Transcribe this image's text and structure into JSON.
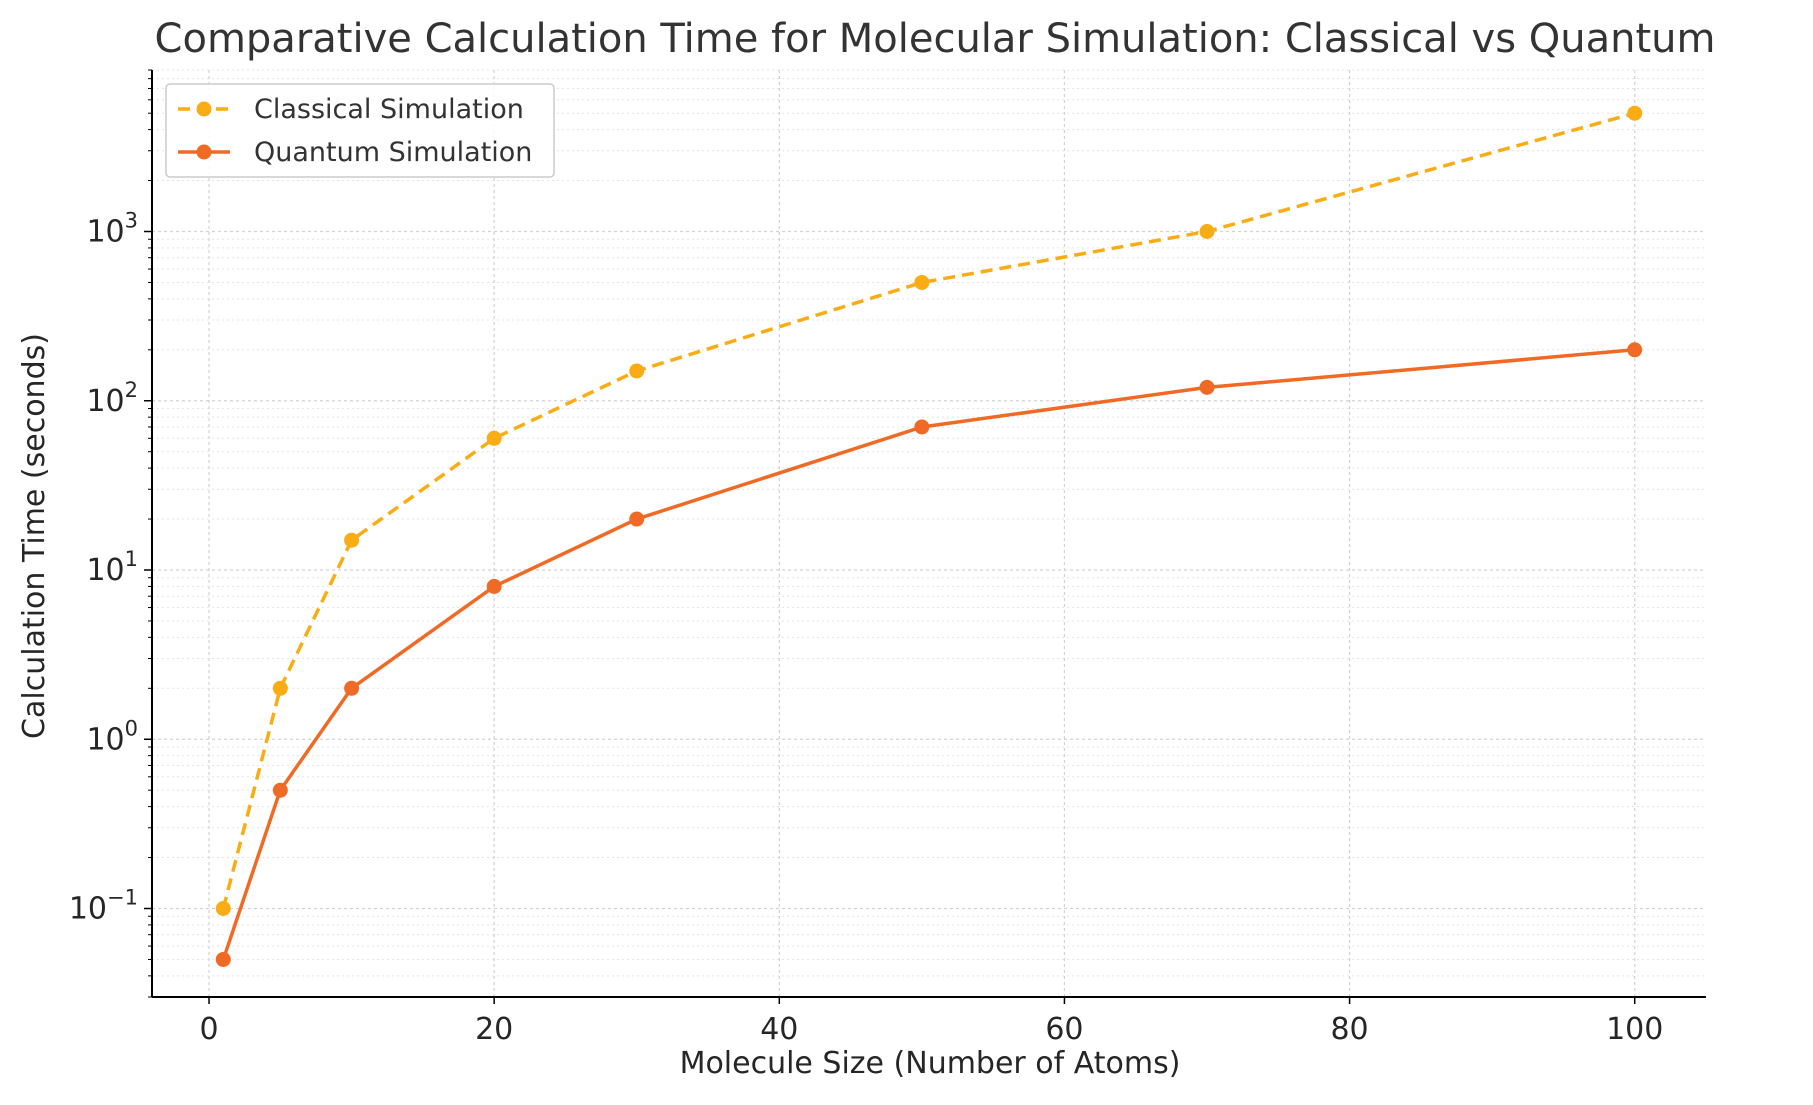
{
  "chart_data": {
    "type": "line",
    "title": "Comparative Calculation Time for Molecular Simulation: Classical vs Quantum",
    "xlabel": "Molecule Size (Number of Atoms)",
    "ylabel": "Calculation Time (seconds)",
    "xscale": "linear",
    "yscale": "log",
    "xlim": [
      -4,
      105
    ],
    "ylim": [
      0.03,
      9000
    ],
    "xticks": [
      0,
      20,
      40,
      60,
      80,
      100
    ],
    "yticks": [
      {
        "value": 0.1,
        "base": "10",
        "exp": "−1"
      },
      {
        "value": 1,
        "base": "10",
        "exp": "0"
      },
      {
        "value": 10,
        "base": "10",
        "exp": "1"
      },
      {
        "value": 100,
        "base": "10",
        "exp": "2"
      },
      {
        "value": 1000,
        "base": "10",
        "exp": "3"
      }
    ],
    "grid": true,
    "legend_position": "top-left",
    "x": [
      1,
      5,
      10,
      20,
      30,
      50,
      70,
      100
    ],
    "series": [
      {
        "name": "Classical Simulation",
        "values": [
          0.1,
          2,
          15,
          60,
          150,
          500,
          1000,
          5000
        ],
        "color": "#f9ac14",
        "line_style": "dashed",
        "marker": "circle"
      },
      {
        "name": "Quantum Simulation",
        "values": [
          0.05,
          0.5,
          2,
          8,
          20,
          70,
          120,
          200
        ],
        "color": "#ef6a25",
        "line_style": "solid",
        "marker": "circle"
      }
    ]
  }
}
